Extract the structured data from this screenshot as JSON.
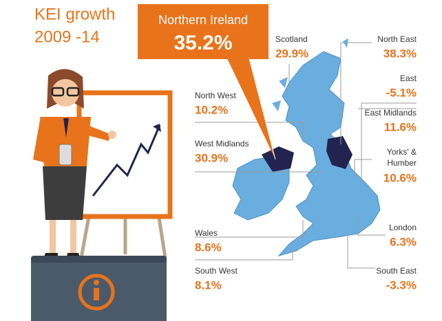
{
  "header": {
    "title_line1": "KEI growth",
    "title_line2": "2009 -14"
  },
  "callout": {
    "region": "Northern Ireland",
    "value": "35.2%"
  },
  "regions": [
    {
      "name": "Scotland",
      "value": "29.9%"
    },
    {
      "name": "North East",
      "value": "38.3%"
    },
    {
      "name": "North West",
      "value": "10.2%"
    },
    {
      "name": "East",
      "value": "-5.1%"
    },
    {
      "name": "East Midlands",
      "value": "11.6%"
    },
    {
      "name": "West Midlands",
      "value": "30.9%"
    },
    {
      "name": "Yorks' & Humber",
      "value": "10.6%"
    },
    {
      "name": "Wales",
      "value": "8.6%"
    },
    {
      "name": "London",
      "value": "6.3%"
    },
    {
      "name": "South West",
      "value": "8.1%"
    },
    {
      "name": "South East",
      "value": "-3.3%"
    }
  ]
}
